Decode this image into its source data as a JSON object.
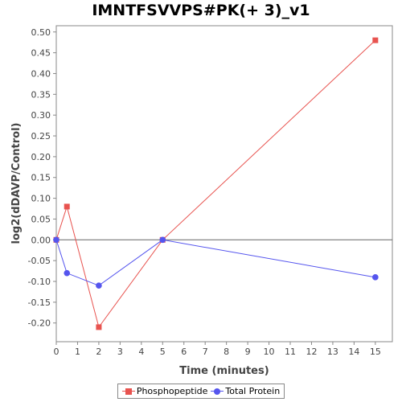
{
  "chart_data": {
    "type": "line",
    "title": "IMNTFSVVPS#PK(+ 3)_v1",
    "xlabel": "Time (minutes)",
    "ylabel": "log2(dDAVP/Control)",
    "xlim": [
      0,
      15.8
    ],
    "ylim": [
      -0.245,
      0.515
    ],
    "x_ticks": [
      0,
      1,
      2,
      3,
      4,
      5,
      6,
      7,
      8,
      9,
      10,
      11,
      12,
      13,
      14,
      15
    ],
    "y_ticks": [
      -0.2,
      -0.15,
      -0.1,
      -0.05,
      0.0,
      0.05,
      0.1,
      0.15,
      0.2,
      0.25,
      0.3,
      0.35,
      0.4,
      0.45,
      0.5
    ],
    "y_tick_labels": [
      "-0.20",
      "-0.15",
      "-0.10",
      "-0.05",
      "0.00",
      "0.05",
      "0.10",
      "0.15",
      "0.20",
      "0.25",
      "0.30",
      "0.35",
      "0.40",
      "0.45",
      "0.50"
    ],
    "zero_line": true,
    "grid": false,
    "legend_position": "bottom",
    "series": [
      {
        "name": "Phosphopeptide",
        "color": "#e8534f",
        "marker": "square",
        "x": [
          0,
          0.5,
          2,
          5,
          15
        ],
        "y": [
          0.0,
          0.08,
          -0.21,
          0.0,
          0.48
        ]
      },
      {
        "name": "Total Protein",
        "color": "#5555ee",
        "marker": "circle",
        "x": [
          0,
          0.5,
          2,
          5,
          15
        ],
        "y": [
          0.0,
          -0.08,
          -0.11,
          0.0,
          -0.09
        ]
      }
    ]
  }
}
